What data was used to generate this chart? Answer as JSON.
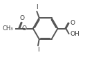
{
  "line_color": "#555555",
  "text_color": "#333333",
  "bond_width": 1.4,
  "figsize": [
    1.36,
    0.83
  ],
  "dpi": 100,
  "xlim": [
    -0.05,
    1.05
  ],
  "ylim": [
    0.02,
    0.98
  ]
}
